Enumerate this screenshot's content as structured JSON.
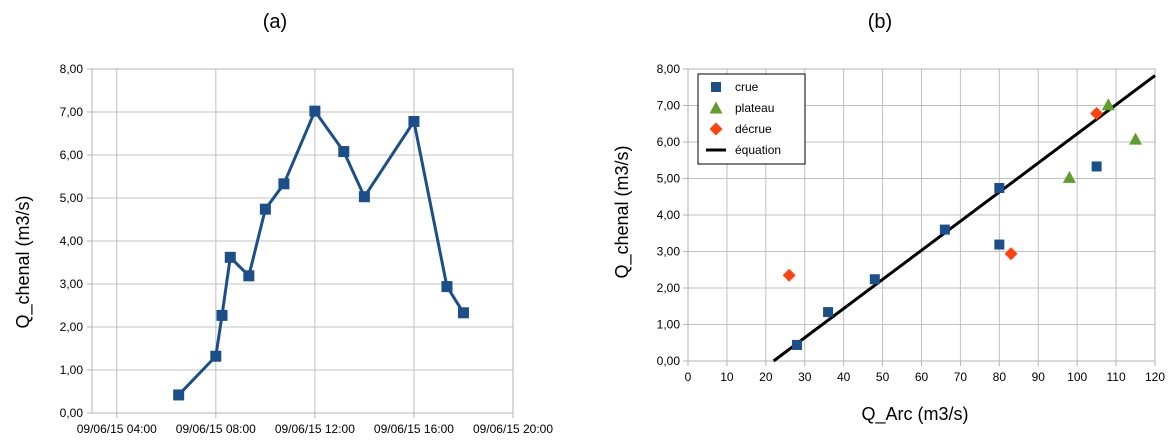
{
  "chart_data": [
    {
      "type": "line",
      "panel_label": "(a)",
      "ylabel": "Q_chenal (m3/s)",
      "xlabel": "",
      "x_ticks": [
        "09/06/15 04:00",
        "09/06/15 08:00",
        "09/06/15 12:00",
        "09/06/15 16:00",
        "09/06/15 20:00"
      ],
      "y_ticks": [
        "0,00",
        "1,00",
        "2,00",
        "3,00",
        "4,00",
        "5,00",
        "6,00",
        "7,00",
        "8,00"
      ],
      "xlim": [
        "09/06/15 03:00",
        "09/06/15 20:00"
      ],
      "ylim": [
        0,
        8
      ],
      "grid": true,
      "series": [
        {
          "color": "#1a4f8a",
          "marker": "square",
          "points": [
            {
              "x": "09/06/15 06:30",
              "y": 0.42
            },
            {
              "x": "09/06/15 08:00",
              "y": 1.32
            },
            {
              "x": "09/06/15 08:15",
              "y": 2.27
            },
            {
              "x": "09/06/15 08:35",
              "y": 3.62
            },
            {
              "x": "09/06/15 09:20",
              "y": 3.19
            },
            {
              "x": "09/06/15 10:00",
              "y": 4.74
            },
            {
              "x": "09/06/15 10:45",
              "y": 5.33
            },
            {
              "x": "09/06/15 12:00",
              "y": 7.02
            },
            {
              "x": "09/06/15 13:10",
              "y": 6.08
            },
            {
              "x": "09/06/15 14:00",
              "y": 5.03
            },
            {
              "x": "09/06/15 16:00",
              "y": 6.78
            },
            {
              "x": "09/06/15 17:20",
              "y": 2.94
            },
            {
              "x": "09/06/15 18:00",
              "y": 2.33
            }
          ]
        }
      ]
    },
    {
      "type": "scatter",
      "panel_label": "(b)",
      "xlabel": "Q_Arc (m3/s)",
      "ylabel": "Q_chenal (m3/s)",
      "x_ticks": [
        "0",
        "10",
        "20",
        "30",
        "40",
        "50",
        "60",
        "70",
        "80",
        "90",
        "100",
        "110",
        "120"
      ],
      "y_ticks": [
        "0,00",
        "1,00",
        "2,00",
        "3,00",
        "4,00",
        "5,00",
        "6,00",
        "7,00",
        "8,00"
      ],
      "xlim": [
        0,
        120
      ],
      "ylim": [
        0,
        8
      ],
      "grid": true,
      "legend_position": "top-left",
      "series": [
        {
          "name": "crue",
          "color": "#1a4f8a",
          "marker": "square",
          "x": [
            28,
            36,
            48,
            66,
            80,
            80,
            105
          ],
          "y": [
            0.44,
            1.34,
            2.24,
            3.6,
            4.74,
            3.19,
            5.33
          ]
        },
        {
          "name": "plateau",
          "color": "#5d9e2c",
          "marker": "triangle",
          "x": [
            98,
            108,
            115
          ],
          "y": [
            5.03,
            7.02,
            6.08
          ]
        },
        {
          "name": "décrue",
          "color": "#ff420e",
          "marker": "diamond",
          "x": [
            26,
            83,
            105
          ],
          "y": [
            2.35,
            2.94,
            6.78
          ]
        },
        {
          "name": "équation",
          "color": "#000000",
          "marker": "line",
          "x": [
            22,
            120
          ],
          "y": [
            0,
            7.82
          ]
        }
      ]
    }
  ]
}
